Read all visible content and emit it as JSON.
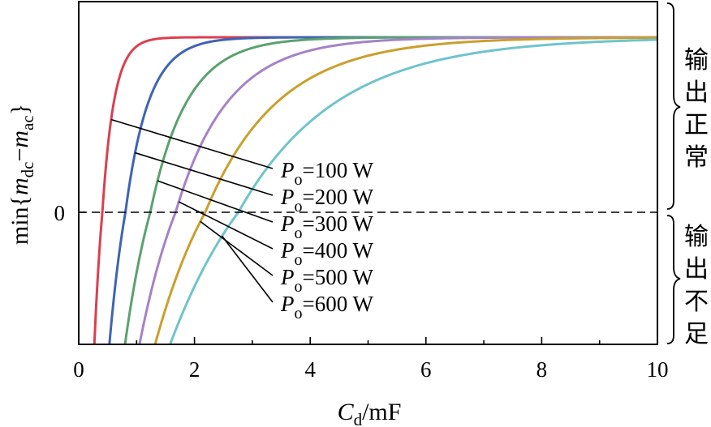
{
  "chart_data": {
    "type": "line",
    "title": "",
    "xlabel": {
      "main": "C",
      "sub": "d",
      "suffix": "/mF"
    },
    "ylabel": {
      "prefix": "min{",
      "m1": "m",
      "s1": "dc",
      "minus": "−",
      "m2": "m",
      "s2": "ac",
      "suffix": "}"
    },
    "xlim": [
      0,
      10
    ],
    "xticks": [
      0,
      2,
      4,
      6,
      8,
      10
    ],
    "xtick_labels": [
      "0",
      "2",
      "4",
      "6",
      "8",
      "10"
    ],
    "ytick_labels": [
      "0"
    ],
    "zero_line": "dashed",
    "series": [
      {
        "name": {
          "P": "P",
          "o": "o",
          "val": "=100 W"
        },
        "color": "#d9404f",
        "x0": 0.27,
        "tau": 0.2,
        "x": [
          0.27,
          0.3,
          0.4,
          0.55,
          0.75,
          1.0,
          1.5,
          2,
          3,
          4,
          6,
          8,
          10
        ],
        "y": [
          -1,
          -0.69,
          0.04,
          0.5,
          0.77,
          0.9,
          0.97,
          0.99,
          1,
          1,
          1,
          1,
          1
        ]
      },
      {
        "name": {
          "P": "P",
          "o": "o",
          "val": "=200 W"
        },
        "color": "#3f64b5",
        "x0": 0.53,
        "tau": 0.4,
        "x": [
          0.53,
          0.6,
          0.8,
          1.0,
          1.3,
          1.6,
          2,
          2.5,
          3,
          4,
          6,
          8,
          10
        ],
        "y": [
          -1,
          -0.66,
          0.04,
          0.39,
          0.65,
          0.79,
          0.89,
          0.95,
          0.98,
          0.99,
          1,
          1,
          1
        ]
      },
      {
        "name": {
          "P": "P",
          "o": "o",
          "val": "=300 W"
        },
        "color": "#5aa26e",
        "x0": 0.8,
        "tau": 0.63,
        "x": [
          0.8,
          0.9,
          1.1,
          1.4,
          1.7,
          2.0,
          2.5,
          3,
          4,
          5,
          6,
          8,
          10
        ],
        "y": [
          -1,
          -0.64,
          -0.05,
          0.41,
          0.62,
          0.75,
          0.86,
          0.92,
          0.97,
          0.99,
          0.99,
          1,
          1
        ]
      },
      {
        "name": {
          "P": "P",
          "o": "o",
          "val": "=400 W"
        },
        "color": "#a582c6",
        "x0": 1.05,
        "tau": 0.9,
        "x": [
          1.05,
          1.15,
          1.4,
          1.7,
          2.0,
          2.5,
          3,
          3.5,
          4,
          5,
          6,
          8,
          10
        ],
        "y": [
          -1,
          -0.69,
          -0.1,
          0.28,
          0.51,
          0.71,
          0.81,
          0.87,
          0.91,
          0.95,
          0.97,
          0.99,
          0.99
        ]
      },
      {
        "name": {
          "P": "P",
          "o": "o",
          "val": "=500 W"
        },
        "color": "#c9a02c",
        "x0": 1.32,
        "tau": 1.25,
        "x": [
          1.32,
          1.45,
          1.7,
          2.0,
          2.4,
          3,
          3.5,
          4,
          5,
          6,
          7,
          8,
          10
        ],
        "y": [
          -1,
          -0.63,
          -0.11,
          0.23,
          0.48,
          0.69,
          0.77,
          0.83,
          0.9,
          0.93,
          0.95,
          0.96,
          0.98
        ]
      },
      {
        "name": {
          "P": "P",
          "o": "o",
          "val": "=600 W"
        },
        "color": "#6fc4cb",
        "x0": 1.58,
        "tau": 1.7,
        "x": [
          1.58,
          1.7,
          2.0,
          2.3,
          2.7,
          3,
          3.5,
          4,
          5,
          6,
          7,
          8,
          10
        ],
        "y": [
          -1,
          -0.68,
          -0.11,
          0.2,
          0.43,
          0.55,
          0.66,
          0.73,
          0.82,
          0.87,
          0.9,
          0.92,
          0.95
        ]
      }
    ],
    "regions": {
      "upper": [
        "输",
        "出",
        "正",
        "常"
      ],
      "lower": [
        "输",
        "出",
        "不",
        "足"
      ]
    }
  }
}
